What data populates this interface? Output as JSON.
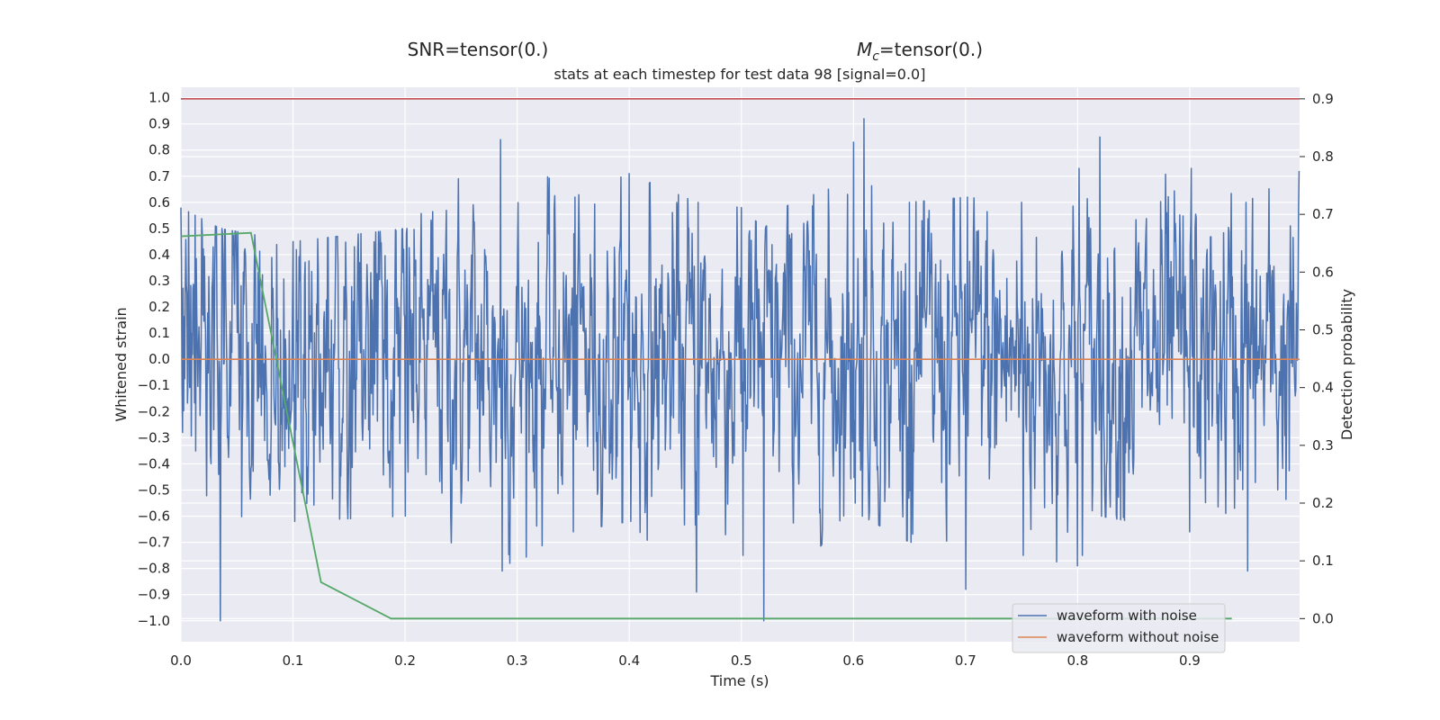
{
  "titles": {
    "snr": "SNR=tensor(0.)",
    "mc_symbol": "M",
    "mc_subscript": "c",
    "mc_value": "=tensor(0.)"
  },
  "chart_data": {
    "type": "line",
    "title": "stats at each timestep for test data 98 [signal=0.0]",
    "xlabel": "Time (s)",
    "ylabel_left": "Whitened strain",
    "ylabel_right": "Detection probability",
    "xlim": [
      0.0,
      0.998
    ],
    "ylim_left": [
      -1.08,
      1.04
    ],
    "ylim_right": [
      -0.04,
      0.92
    ],
    "xticks": [
      "0.0",
      "0.1",
      "0.2",
      "0.3",
      "0.4",
      "0.5",
      "0.6",
      "0.7",
      "0.8",
      "0.9"
    ],
    "yticks_left": [
      "−1.0",
      "−0.9",
      "−0.8",
      "−0.7",
      "−0.6",
      "−0.5",
      "−0.4",
      "−0.3",
      "−0.2",
      "−0.1",
      "0.0",
      "0.1",
      "0.2",
      "0.3",
      "0.4",
      "0.5",
      "0.6",
      "0.7",
      "0.8",
      "0.9",
      "1.0"
    ],
    "yticks_right": [
      "0.0",
      "0.1",
      "0.2",
      "0.3",
      "0.4",
      "0.5",
      "0.6",
      "0.7",
      "0.8",
      "0.9"
    ],
    "grid": true,
    "legend_position": "lower-right",
    "colors": {
      "noisy": "#4c72b0",
      "clean": "#dd8452",
      "probability": "#55a868",
      "threshold": "#c44e52",
      "plot_bg": "#eaeaf2",
      "grid": "#ffffff"
    },
    "series": [
      {
        "name": "waveform with noise",
        "axis": "left",
        "sample_rate_hz": 2048,
        "n_samples": 2044,
        "envelope": {
          "t": [
            0.0,
            0.035,
            0.1,
            0.2,
            0.285,
            0.35,
            0.4,
            0.46,
            0.5,
            0.52,
            0.6,
            0.608,
            0.65,
            0.7,
            0.75,
            0.8,
            0.82,
            0.9,
            0.95,
            0.998
          ],
          "max": [
            0.58,
            0.5,
            0.45,
            0.5,
            0.84,
            0.62,
            0.71,
            0.6,
            0.58,
            0.5,
            0.83,
            0.92,
            0.6,
            0.62,
            0.6,
            0.73,
            0.85,
            0.73,
            0.6,
            0.72
          ],
          "min": [
            -0.28,
            -1.0,
            -0.62,
            -0.6,
            -0.81,
            -0.66,
            -0.62,
            -0.89,
            -0.75,
            -1.0,
            -0.55,
            -0.6,
            -0.7,
            -0.88,
            -0.75,
            -0.79,
            -0.6,
            -0.66,
            -0.81,
            -0.47
          ]
        }
      },
      {
        "name": "waveform without noise",
        "axis": "left",
        "x": [
          0.0,
          0.998
        ],
        "y": [
          0.0,
          0.0
        ]
      },
      {
        "name": "",
        "axis": "right",
        "x": [
          0.0,
          0.0625,
          0.125,
          0.1875,
          0.25,
          0.3125,
          0.375,
          0.4375,
          0.5,
          0.5625,
          0.625,
          0.6875,
          0.75,
          0.8125,
          0.875,
          0.9375
        ],
        "y": [
          0.662,
          0.668,
          0.063,
          0.0,
          0.0,
          0.0,
          0.0,
          0.0,
          0.0,
          0.0,
          0.0,
          0.0,
          0.0,
          0.0,
          0.0,
          0.0
        ]
      }
    ],
    "threshold": {
      "axis": "right",
      "value": 0.9
    }
  }
}
